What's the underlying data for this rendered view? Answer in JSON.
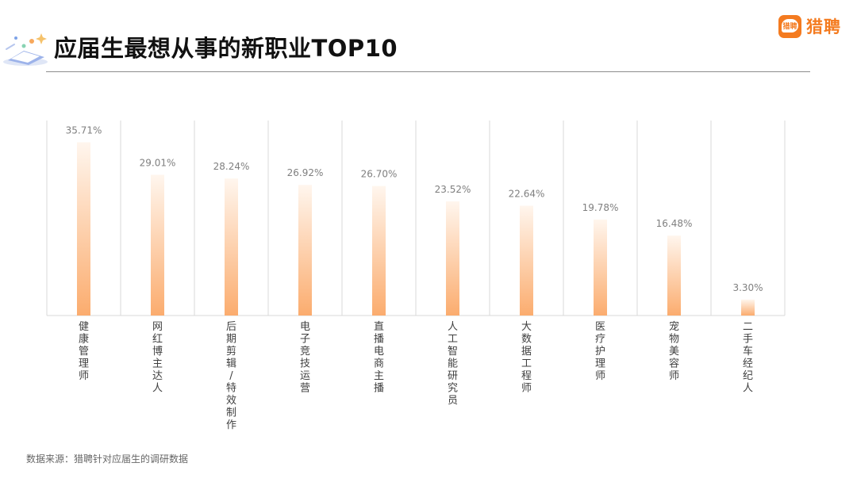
{
  "header": {
    "title": "应届生最想从事的新职业TOP10",
    "brand_name": "猎聘",
    "brand_mark_text": "猎聘"
  },
  "footer": {
    "source": "数据来源：猎聘针对应届生的调研数据"
  },
  "colors": {
    "bar_top": "#fff6ee",
    "bar_bottom": "#fbac6e",
    "brand": "#f47b20",
    "grid": "#d9d9d9",
    "label": "#7f7f7f",
    "category": "#404040"
  },
  "chart_data": {
    "type": "bar",
    "title": "应届生最想从事的新职业TOP10",
    "xlabel": "",
    "ylabel": "",
    "categories": [
      "健康管理师",
      "网红博主达人",
      "后期剪辑/特效制作",
      "电子竞技运营",
      "直播电商主播",
      "人工智能研究员",
      "大数据工程师",
      "医疗护理师",
      "宠物美容师",
      "二手车经纪人"
    ],
    "values": [
      35.71,
      29.01,
      28.24,
      26.92,
      26.7,
      23.52,
      22.64,
      19.78,
      16.48,
      3.3
    ],
    "data_labels": [
      "35.71%",
      "29.01%",
      "28.24%",
      "26.92%",
      "26.70%",
      "23.52%",
      "22.64%",
      "19.78%",
      "16.48%",
      "3.30%"
    ],
    "unit": "%",
    "ylim": [
      0,
      40
    ],
    "grid": "vertical separators",
    "legend": "none"
  }
}
